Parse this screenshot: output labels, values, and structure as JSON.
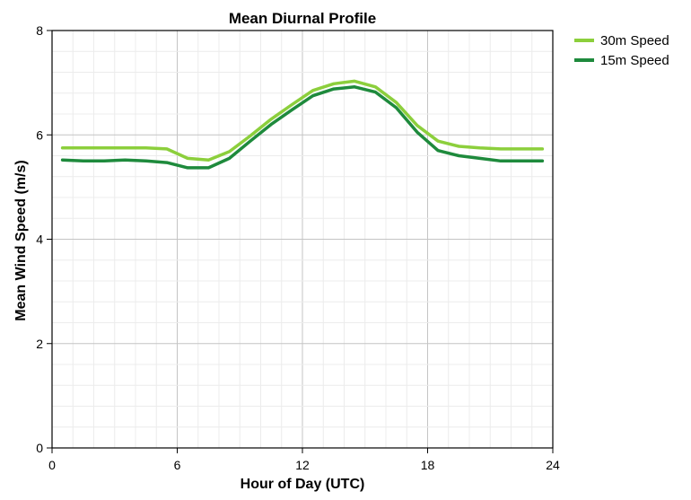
{
  "chart_data": {
    "type": "line",
    "title": "Mean Diurnal Profile",
    "xlabel": "Hour of Day (UTC)",
    "ylabel": "Mean Wind Speed (m/s)",
    "xlim": [
      0,
      24
    ],
    "ylim": [
      0,
      8
    ],
    "xticks": [
      0,
      6,
      12,
      18,
      24
    ],
    "yticks": [
      0,
      2,
      4,
      6,
      8
    ],
    "grid": true,
    "legend_position": "top-right",
    "x": [
      0.5,
      1.5,
      2.5,
      3.5,
      4.5,
      5.5,
      6.5,
      7.5,
      8.5,
      9.5,
      10.5,
      11.5,
      12.5,
      13.5,
      14.5,
      15.5,
      16.5,
      17.5,
      18.5,
      19.5,
      20.5,
      21.5,
      22.5,
      23.5
    ],
    "series": [
      {
        "name": "30m Speed",
        "color": "#8ccf3c",
        "values": [
          5.75,
          5.75,
          5.75,
          5.75,
          5.75,
          5.73,
          5.55,
          5.52,
          5.68,
          5.98,
          6.3,
          6.58,
          6.85,
          6.98,
          7.03,
          6.92,
          6.62,
          6.18,
          5.88,
          5.78,
          5.75,
          5.73,
          5.73,
          5.73
        ]
      },
      {
        "name": "15m Speed",
        "color": "#1e8a3c",
        "values": [
          5.52,
          5.5,
          5.5,
          5.52,
          5.5,
          5.47,
          5.37,
          5.37,
          5.55,
          5.88,
          6.2,
          6.48,
          6.75,
          6.88,
          6.92,
          6.82,
          6.52,
          6.05,
          5.7,
          5.6,
          5.55,
          5.5,
          5.5,
          5.5
        ]
      }
    ]
  }
}
